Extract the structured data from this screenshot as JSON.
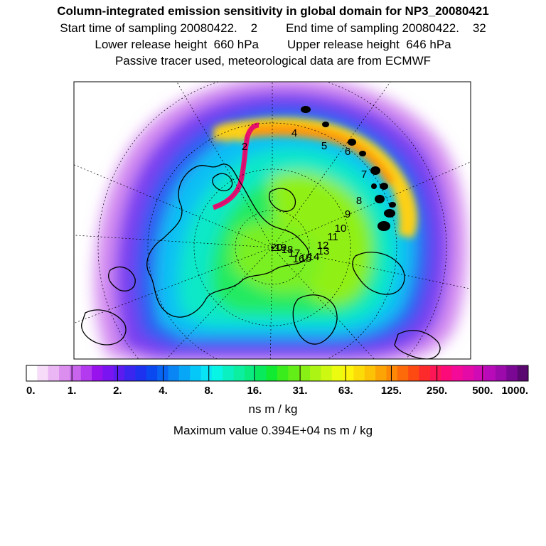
{
  "header": {
    "title": "Column-integrated emission sensitivity in global domain for NP3_20080421",
    "start_label": "Start time of sampling 20080422.",
    "start_value": "2",
    "end_label": "End time of sampling 20080422.",
    "end_value": "32",
    "lower_label": "Lower release height",
    "lower_value": "660 hPa",
    "upper_label": "Upper release height",
    "upper_value": "646 hPa",
    "tracer_note": "Passive tracer used, meteorological data are from ECMWF"
  },
  "colorbar": {
    "tick_labels": [
      "0.",
      "1.",
      "2.",
      "4.",
      "8.",
      "16.",
      "31.",
      "63.",
      "125.",
      "250.",
      "500.",
      "1000."
    ],
    "colors": [
      "#ffffff",
      "#f6dcf9",
      "#eab6f3",
      "#dc8eef",
      "#c964ec",
      "#b43aef",
      "#9812ee",
      "#7a14f0",
      "#5c1cf0",
      "#3a26ef",
      "#1c32ef",
      "#0a48f0",
      "#0864f2",
      "#0a86f4",
      "#08a6f6",
      "#06c8f8",
      "#08e4f6",
      "#08f4e4",
      "#0af0c0",
      "#0ceea0",
      "#0aec80",
      "#08ea5c",
      "#10ea30",
      "#3aec1c",
      "#64ee18",
      "#88f014",
      "#acf414",
      "#ccf812",
      "#ecfc10",
      "#fcf40a",
      "#fcdc08",
      "#fcc206",
      "#fca406",
      "#fc8806",
      "#fc6a0a",
      "#fc4a12",
      "#fc2a2a",
      "#fc1656",
      "#fc0a7a",
      "#f40a98",
      "#e40aa8",
      "#d00ab4",
      "#b80ab8",
      "#9c0aac",
      "#7a0894",
      "#5a0870"
    ]
  },
  "unit": "ns m / kg",
  "maximum": "Maximum value  0.394E+04 ns m / kg",
  "trajectory_labels": [
    "2",
    "4",
    "5",
    "6",
    "7",
    "8",
    "9",
    "10",
    "11",
    "12",
    "13",
    "14",
    "15",
    "16",
    "17",
    "18",
    "19",
    "20"
  ]
}
